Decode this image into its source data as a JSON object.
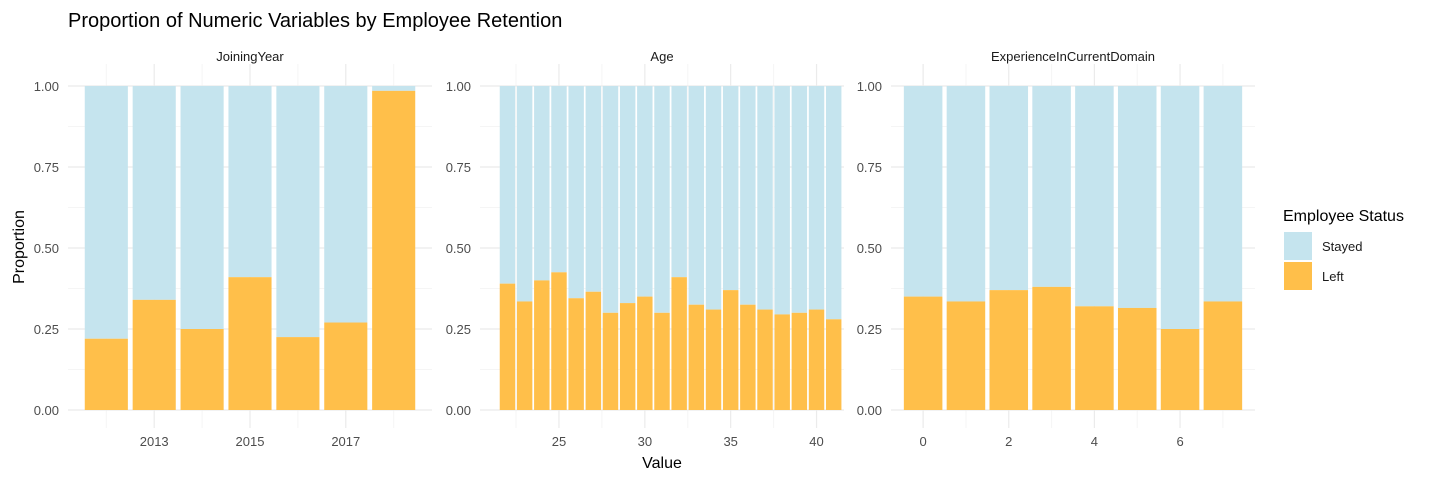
{
  "title": "Proportion of Numeric Variables by Employee Retention",
  "xlabel": "Value",
  "ylabel": "Proportion",
  "colors": {
    "stayed": "#c5e4ee",
    "left": "#ffbf4a",
    "grid_major": "#ebebeb",
    "grid_minor": "#f5f5f5",
    "text": "#4d4d4d",
    "title": "#000000"
  },
  "legend": {
    "title": "Employee Status",
    "position": "right",
    "items": [
      {
        "label": "Stayed",
        "key": "stayed"
      },
      {
        "label": "Left",
        "key": "left"
      }
    ]
  },
  "y_ticks": [
    "0.00",
    "0.25",
    "0.50",
    "0.75",
    "1.00"
  ],
  "chart_data": [
    {
      "type": "bar",
      "stacked": true,
      "facet": "JoiningYear",
      "x": [
        2012,
        2013,
        2014,
        2015,
        2016,
        2017,
        2018
      ],
      "xlim": [
        2011.2,
        2018.8
      ],
      "x_ticks": [
        2013,
        2015,
        2017
      ],
      "ylim": [
        0,
        1
      ],
      "grid": true,
      "series": [
        {
          "name": "Left",
          "values": [
            0.22,
            0.34,
            0.25,
            0.41,
            0.225,
            0.27,
            0.985
          ]
        },
        {
          "name": "Stayed",
          "values": [
            0.78,
            0.66,
            0.75,
            0.59,
            0.775,
            0.73,
            0.015
          ]
        }
      ]
    },
    {
      "type": "bar",
      "stacked": true,
      "facet": "Age",
      "x": [
        22,
        23,
        24,
        25,
        26,
        27,
        28,
        29,
        30,
        31,
        32,
        33,
        34,
        35,
        36,
        37,
        38,
        39,
        40,
        41
      ],
      "xlim": [
        20.4,
        41.6
      ],
      "x_ticks": [
        25,
        30,
        35,
        40
      ],
      "ylim": [
        0,
        1
      ],
      "grid": true,
      "series": [
        {
          "name": "Left",
          "values": [
            0.39,
            0.335,
            0.4,
            0.425,
            0.345,
            0.365,
            0.3,
            0.33,
            0.35,
            0.3,
            0.41,
            0.325,
            0.31,
            0.37,
            0.325,
            0.31,
            0.295,
            0.3,
            0.31,
            0.28
          ]
        },
        {
          "name": "Stayed",
          "values": [
            0.61,
            0.665,
            0.6,
            0.575,
            0.655,
            0.635,
            0.7,
            0.67,
            0.65,
            0.7,
            0.59,
            0.675,
            0.69,
            0.63,
            0.675,
            0.69,
            0.705,
            0.7,
            0.69,
            0.72
          ]
        }
      ]
    },
    {
      "type": "bar",
      "stacked": true,
      "facet": "ExperienceInCurrentDomain",
      "x": [
        0,
        1,
        2,
        3,
        4,
        5,
        6,
        7
      ],
      "xlim": [
        -0.75,
        7.75
      ],
      "x_ticks": [
        0,
        2,
        4,
        6
      ],
      "ylim": [
        0,
        1
      ],
      "grid": true,
      "series": [
        {
          "name": "Left",
          "values": [
            0.35,
            0.335,
            0.37,
            0.38,
            0.32,
            0.315,
            0.25,
            0.335
          ]
        },
        {
          "name": "Stayed",
          "values": [
            0.65,
            0.665,
            0.63,
            0.62,
            0.68,
            0.685,
            0.75,
            0.665
          ]
        }
      ]
    }
  ]
}
